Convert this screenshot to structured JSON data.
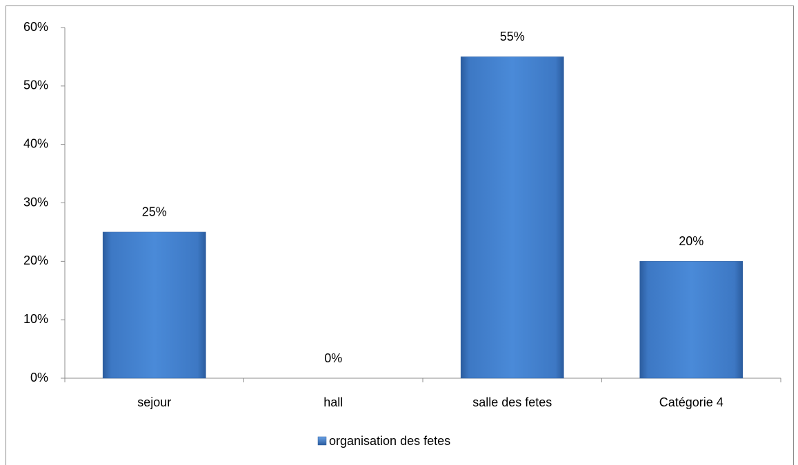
{
  "chart_data": {
    "type": "bar",
    "categories": [
      "sejour",
      "hall",
      "salle des fetes",
      "Catégorie 4"
    ],
    "series": [
      {
        "name": "organisation des fetes",
        "color": "#4a86d4",
        "values": [
          25,
          0,
          55,
          20
        ],
        "value_labels": [
          "25%",
          "0%",
          "55%",
          "20%"
        ]
      }
    ],
    "ylim": [
      0,
      60
    ],
    "yticks": [
      {
        "value": 0,
        "label": "0%"
      },
      {
        "value": 10,
        "label": "10%"
      },
      {
        "value": 20,
        "label": "20%"
      },
      {
        "value": 30,
        "label": "30%"
      },
      {
        "value": 40,
        "label": "40%"
      },
      {
        "value": 50,
        "label": "50%"
      },
      {
        "value": 60,
        "label": "60%"
      }
    ],
    "legend": "bottom"
  }
}
